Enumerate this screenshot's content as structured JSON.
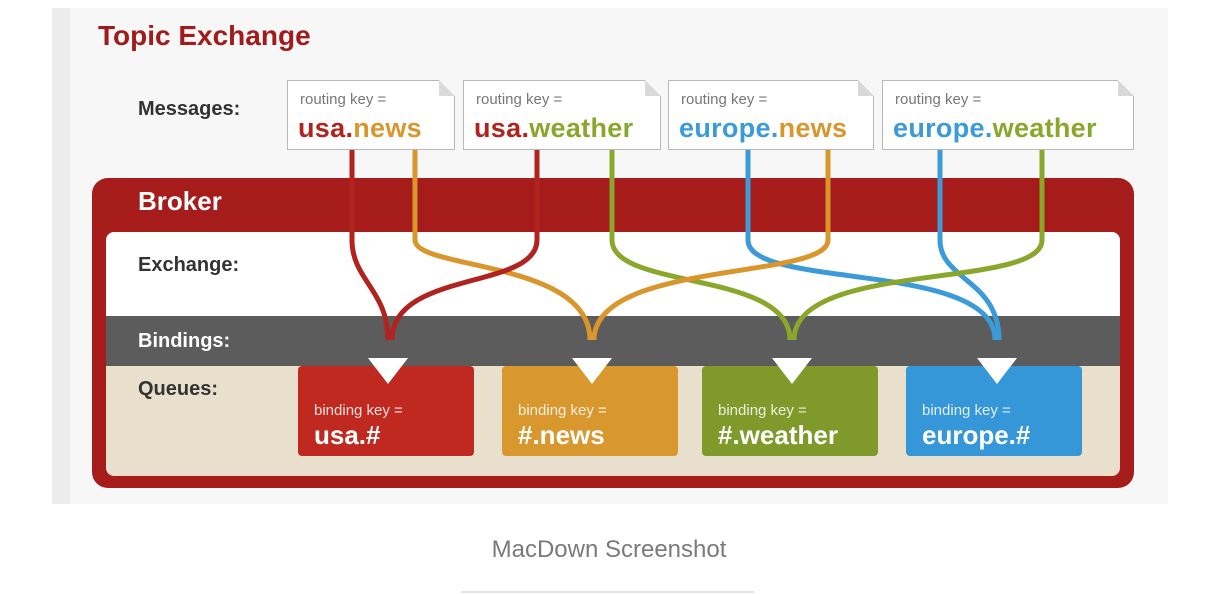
{
  "title": "Topic Exchange",
  "labels": {
    "messages": "Messages:",
    "broker": "Broker",
    "exchange": "Exchange:",
    "bindings": "Bindings:",
    "queues": "Queues:"
  },
  "messages": [
    {
      "prefix": "routing key =",
      "part1": "usa",
      "dot": ".",
      "part2": "news"
    },
    {
      "prefix": "routing key =",
      "part1": "usa",
      "dot": ".",
      "part2": "weather"
    },
    {
      "prefix": "routing key =",
      "part1": "europe",
      "dot": ".",
      "part2": "news"
    },
    {
      "prefix": "routing key =",
      "part1": "europe",
      "dot": ".",
      "part2": "weather"
    }
  ],
  "queues": [
    {
      "prefix": "binding key =",
      "value": "usa.#",
      "color": "#c0291f"
    },
    {
      "prefix": "binding key =",
      "value": "#.news",
      "color": "#d9982e"
    },
    {
      "prefix": "binding key =",
      "value": "#.weather",
      "color": "#7f9a2a"
    },
    {
      "prefix": "binding key =",
      "value": "europe.#",
      "color": "#3596d8"
    }
  ],
  "colors": {
    "usa": "#b0231f",
    "news": "#d8962c",
    "weather": "#8aa62b",
    "europe": "#3b9ad8",
    "broker": "#a61c1a"
  },
  "caption": "MacDown Screenshot"
}
